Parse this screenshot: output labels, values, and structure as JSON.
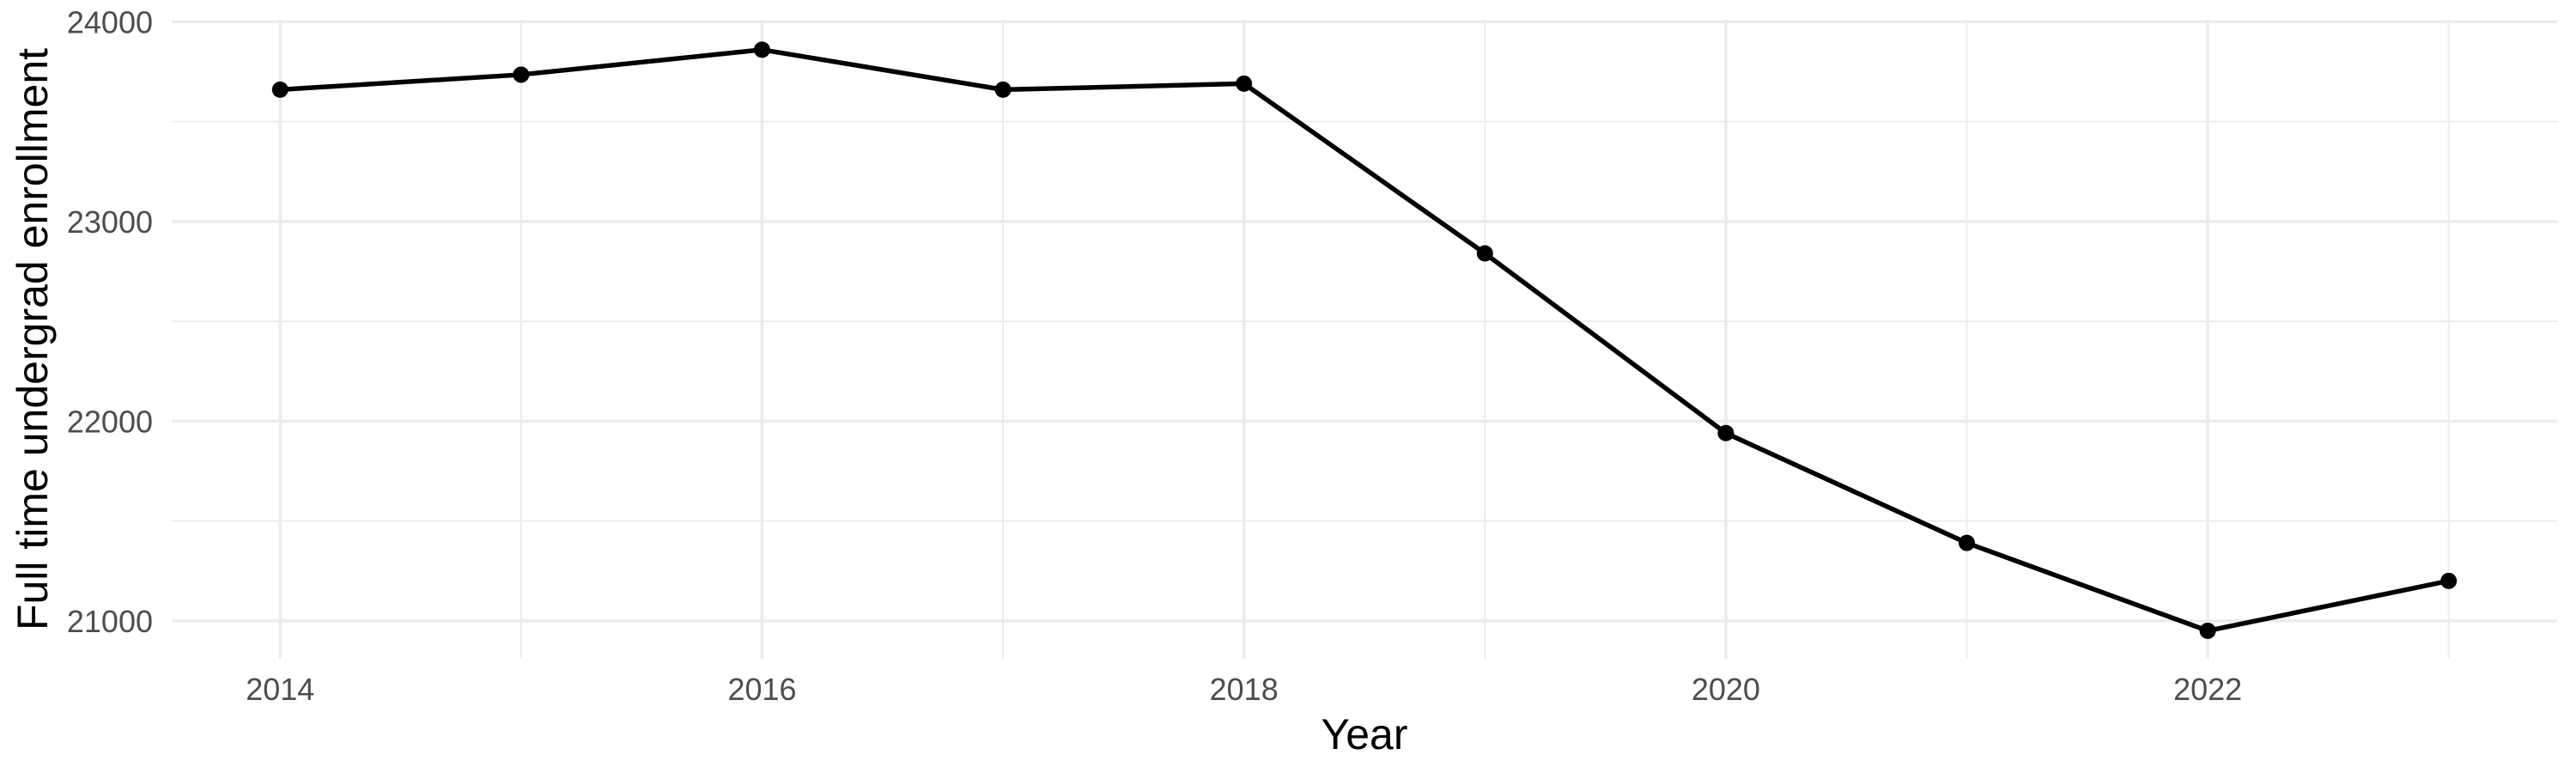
{
  "chart_data": {
    "type": "line",
    "title": "",
    "xlabel": "Year",
    "ylabel": "Full time undergrad enrollment",
    "x": [
      2014,
      2015,
      2016,
      2017,
      2018,
      2019,
      2020,
      2021,
      2022,
      2023
    ],
    "series": [
      {
        "name": "Full time undergrad enrollment",
        "values": [
          23660,
          23735,
          23860,
          23660,
          23690,
          22840,
          21940,
          21390,
          20950,
          21200
        ]
      }
    ],
    "x_major_ticks": [
      2014,
      2016,
      2018,
      2020,
      2022
    ],
    "x_tick_labels": [
      "2014",
      "2016",
      "2018",
      "2020",
      "2022"
    ],
    "x_minor_gridlines": [
      2015,
      2017,
      2019,
      2021,
      2023
    ],
    "y_major_ticks": [
      21000,
      22000,
      23000,
      24000
    ],
    "y_tick_labels": [
      "21000",
      "22000",
      "23000",
      "24000"
    ],
    "y_minor_gridlines": [
      21500,
      22500,
      23500
    ],
    "xlim": [
      2013.55,
      2023.45
    ],
    "ylim": [
      20810,
      24010
    ],
    "grid": "on",
    "legend": "none",
    "marker": "point",
    "colors": {
      "line": "#000000",
      "point": "#000000",
      "grid_major": "#ebebeb",
      "grid_minor": "#ebebeb",
      "tick_label": "#4d4d4d",
      "axis_title": "#000000",
      "background": "#ffffff"
    }
  }
}
